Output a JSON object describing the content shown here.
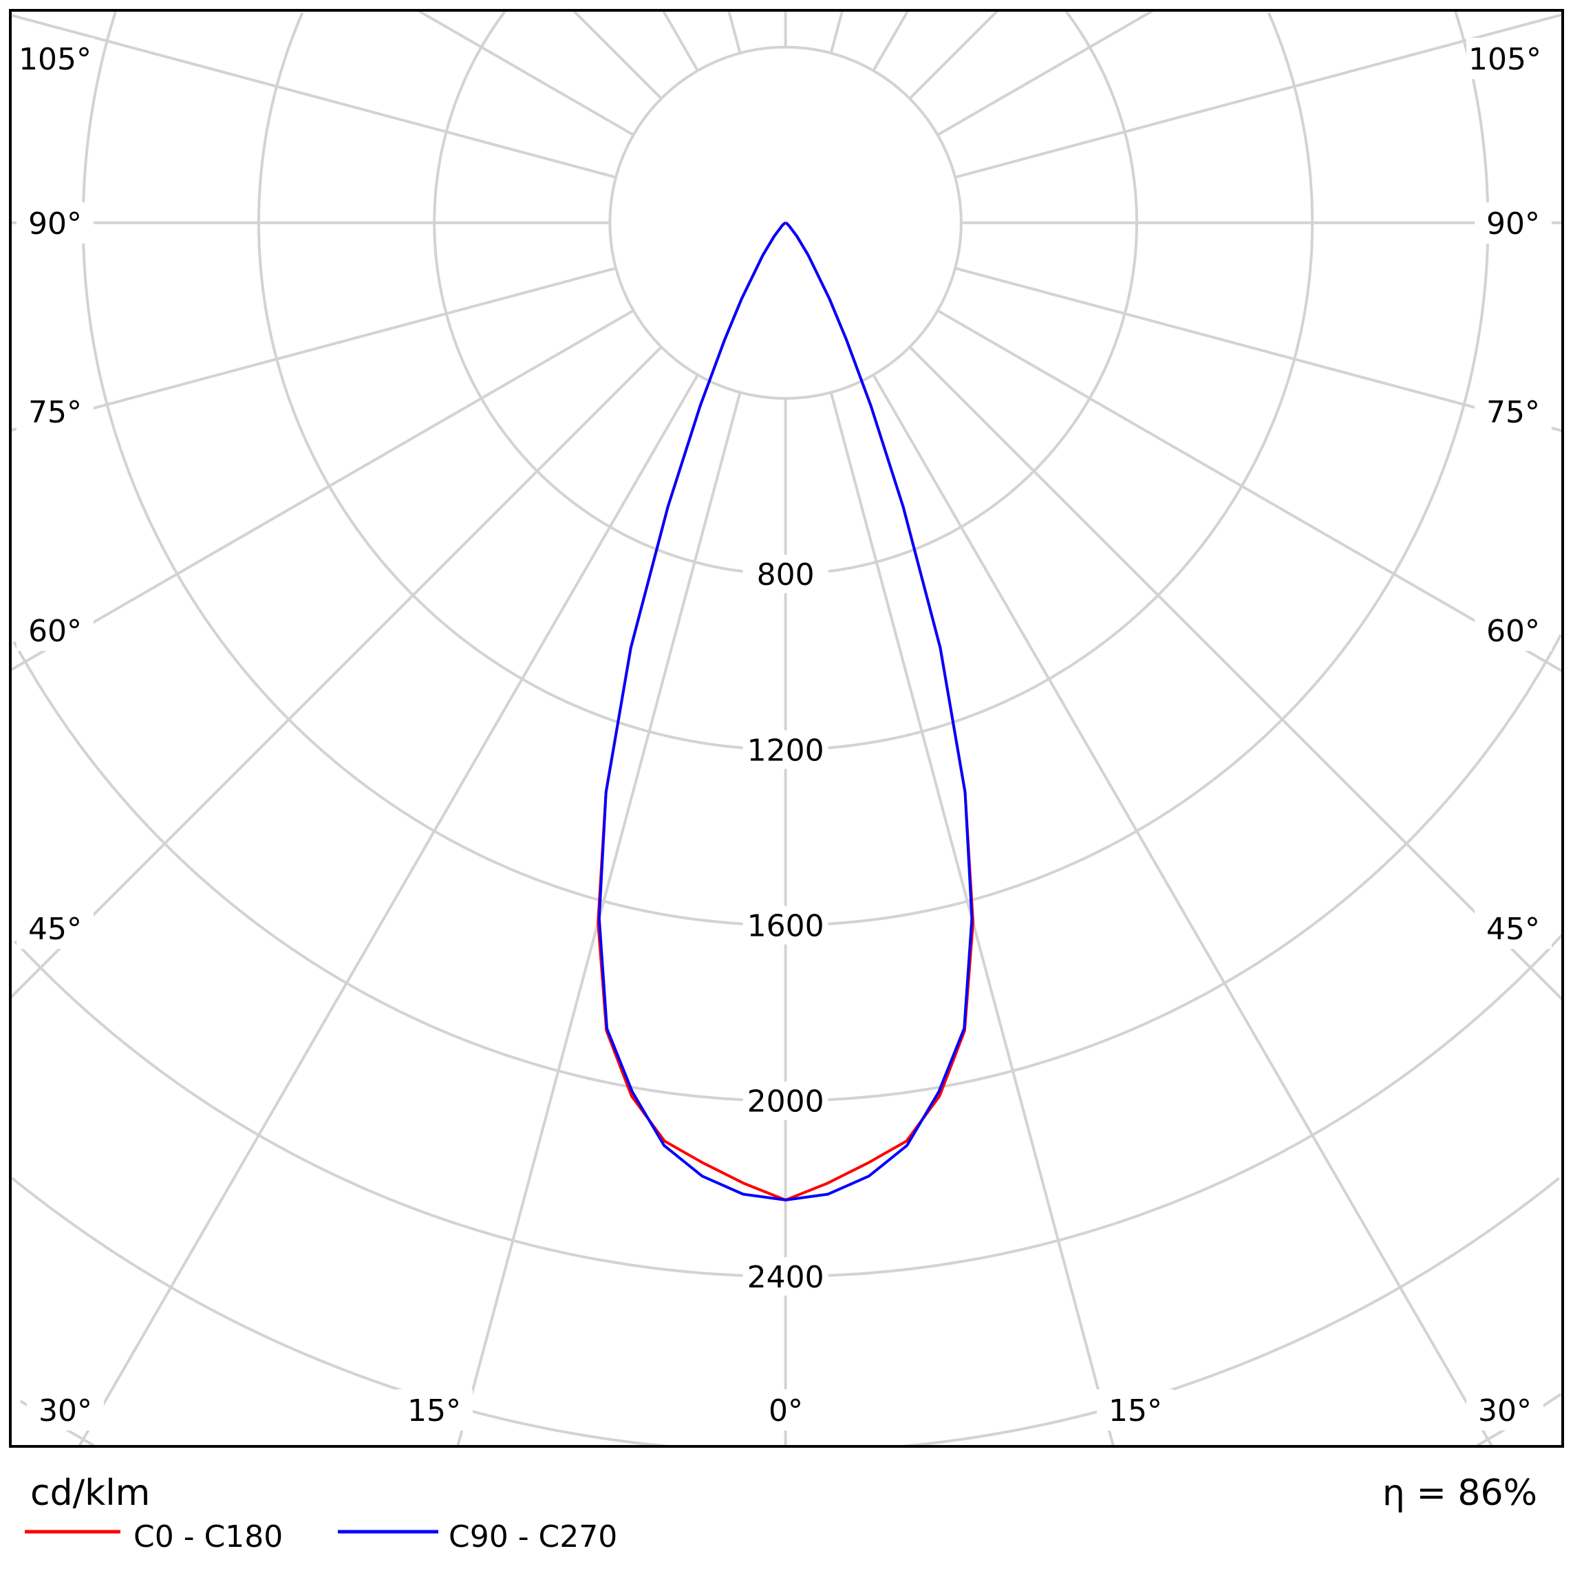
{
  "chart_data": {
    "type": "polar",
    "unit_label": "cd/klm",
    "efficiency_label": "η = 86%",
    "radial_ticks": [
      800,
      1200,
      1600,
      2000,
      2400
    ],
    "radial_tick_labels": [
      "800",
      "1200",
      "1600",
      "2000",
      "2400"
    ],
    "radial_grid_step": 400,
    "angle_ticks_left": [
      "105°",
      "90°",
      "75°",
      "60°",
      "45°",
      "30°",
      "15°",
      "0°"
    ],
    "angle_ticks_right": [
      "105°",
      "90°",
      "75°",
      "60°",
      "45°",
      "30°",
      "15°"
    ],
    "angles_deg": [
      0,
      2.5,
      5,
      7.5,
      10,
      12.5,
      15,
      17.5,
      20,
      22.5,
      25,
      27.5,
      30,
      35,
      40,
      50,
      60,
      90
    ],
    "series": [
      {
        "name": "C0 - C180",
        "color": "#ff0000",
        "values": [
          2226,
          2190,
          2150,
          2110,
          2020,
          1885,
          1650,
          1360,
          1030,
          700,
          460,
          300,
          200,
          90,
          40,
          10,
          3,
          0
        ]
      },
      {
        "name": "C90 - C270",
        "color": "#0000ff",
        "values": [
          2226,
          2215,
          2180,
          2120,
          2010,
          1880,
          1640,
          1360,
          1030,
          700,
          460,
          300,
          200,
          90,
          40,
          10,
          3,
          0
        ]
      }
    ],
    "grid": true,
    "grid_color": "#d3d3d3",
    "legend_position": "bottom-left"
  }
}
